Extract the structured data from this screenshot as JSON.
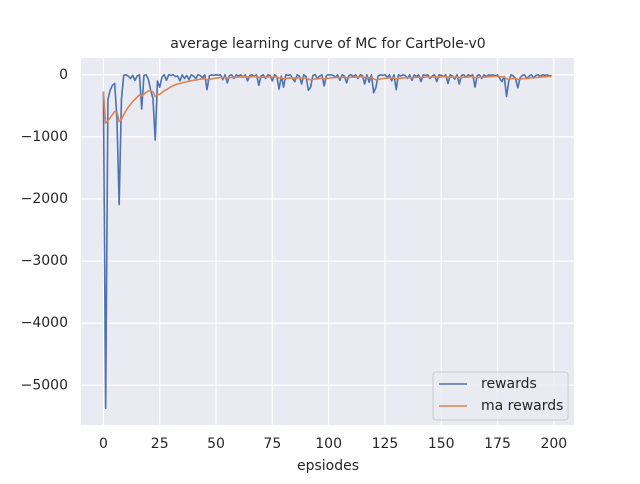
{
  "chart_data": {
    "type": "line",
    "title": "average learning curve of MC for CartPole-v0",
    "x_label": "epsiodes",
    "x": [
      0,
      1,
      2,
      3,
      4,
      5,
      6,
      7,
      8,
      9,
      10,
      11,
      12,
      13,
      14,
      15,
      16,
      17,
      18,
      19,
      20,
      21,
      22,
      23,
      24,
      25,
      26,
      27,
      28,
      29,
      30,
      31,
      32,
      33,
      34,
      35,
      36,
      37,
      38,
      39,
      40,
      41,
      42,
      43,
      44,
      45,
      46,
      47,
      48,
      49,
      50,
      51,
      52,
      53,
      54,
      55,
      56,
      57,
      58,
      59,
      60,
      61,
      62,
      63,
      64,
      65,
      66,
      67,
      68,
      69,
      70,
      71,
      72,
      73,
      74,
      75,
      76,
      77,
      78,
      79,
      80,
      81,
      82,
      83,
      84,
      85,
      86,
      87,
      88,
      89,
      90,
      91,
      92,
      93,
      94,
      95,
      96,
      97,
      98,
      99,
      100,
      101,
      102,
      103,
      104,
      105,
      106,
      107,
      108,
      109,
      110,
      111,
      112,
      113,
      114,
      115,
      116,
      117,
      118,
      119,
      120,
      121,
      122,
      123,
      124,
      125,
      126,
      127,
      128,
      129,
      130,
      131,
      132,
      133,
      134,
      135,
      136,
      137,
      138,
      139,
      140,
      141,
      142,
      143,
      144,
      145,
      146,
      147,
      148,
      149,
      150,
      151,
      152,
      153,
      154,
      155,
      156,
      157,
      158,
      159,
      160,
      161,
      162,
      163,
      164,
      165,
      166,
      167,
      168,
      169,
      170,
      171,
      172,
      173,
      174,
      175,
      176,
      177,
      178,
      179,
      180,
      181,
      182,
      183,
      184,
      185,
      186,
      187,
      188,
      189,
      190,
      191,
      192,
      193,
      194,
      195,
      196,
      197,
      198,
      199
    ],
    "series": [
      {
        "name": "rewards",
        "color": "#4c72b0",
        "values": [
          -270,
          -5370,
          -400,
          -250,
          -170,
          -140,
          -700,
          -2090,
          -400,
          -10,
          0,
          -20,
          -60,
          -10,
          -90,
          -20,
          0,
          -550,
          -10,
          0,
          -80,
          -250,
          -380,
          -1050,
          -100,
          -200,
          -40,
          0,
          -90,
          0,
          -10,
          0,
          -30,
          -20,
          -100,
          0,
          -60,
          -10,
          -80,
          0,
          -20,
          -60,
          0,
          -10,
          -50,
          0,
          -240,
          -20,
          0,
          -10,
          0,
          -5,
          0,
          -80,
          0,
          -130,
          -10,
          0,
          -60,
          0,
          -20,
          0,
          -40,
          0,
          -100,
          -10,
          0,
          -30,
          0,
          -170,
          -20,
          0,
          -60,
          0,
          -10,
          -100,
          0,
          -30,
          -230,
          -20,
          -200,
          0,
          -10,
          0,
          -60,
          -110,
          0,
          -20,
          -150,
          0,
          -30,
          -250,
          -200,
          -10,
          0,
          -60,
          -20,
          0,
          -180,
          -10,
          0,
          0,
          -10,
          -40,
          0,
          -90,
          0,
          -20,
          -130,
          -10,
          0,
          -30,
          0,
          -60,
          0,
          -10,
          -150,
          0,
          -120,
          0,
          -290,
          -200,
          -20,
          0,
          -10,
          0,
          -40,
          0,
          -100,
          0,
          -240,
          0,
          -20,
          0,
          -10,
          -60,
          0,
          -90,
          0,
          -30,
          0,
          -110,
          0,
          -10,
          0,
          -60,
          -20,
          0,
          -110,
          0,
          -10,
          -30,
          0,
          -140,
          0,
          -20,
          -70,
          0,
          -150,
          -10,
          0,
          -40,
          0,
          -20,
          0,
          -200,
          -10,
          0,
          -60,
          0,
          -30,
          0,
          -10,
          0,
          -20,
          0,
          -60,
          -110,
          -30,
          -350,
          -100,
          0,
          -20,
          -60,
          -210,
          -50,
          -10,
          0,
          -60,
          -20,
          0,
          -50,
          -10,
          0,
          -30,
          0,
          -10,
          0,
          -20,
          -10
        ]
      },
      {
        "name": "ma rewards",
        "color": "#dd8452",
        "values": [
          -270,
          -780,
          -742,
          -693,
          -641,
          -591,
          -602,
          -751,
          -716,
          -645,
          -581,
          -524,
          -478,
          -431,
          -397,
          -359,
          -323,
          -346,
          -312,
          -281,
          -261,
          -260,
          -272,
          -350,
          -325,
          -313,
          -286,
          -257,
          -240,
          -216,
          -195,
          -176,
          -161,
          -147,
          -142,
          -128,
          -121,
          -110,
          -107,
          -96,
          -88,
          -85,
          -77,
          -70,
          -68,
          -61,
          -79,
          -73,
          -66,
          -60,
          -54,
          -49,
          -44,
          -48,
          -43,
          -52,
          -48,
          -43,
          -45,
          -40,
          -38,
          -34,
          -35,
          -31,
          -38,
          -35,
          -32,
          -32,
          -29,
          -43,
          -41,
          -37,
          -39,
          -35,
          -33,
          -40,
          -36,
          -35,
          -55,
          -52,
          -67,
          -60,
          -55,
          -50,
          -51,
          -57,
          -51,
          -48,
          -58,
          -52,
          -50,
          -70,
          -83,
          -76,
          -68,
          -67,
          -62,
          -56,
          -68,
          -62,
          -56,
          -50,
          -46,
          -45,
          -41,
          -46,
          -41,
          -39,
          -48,
          -44,
          -40,
          -39,
          -35,
          -38,
          -34,
          -32,
          -44,
          -40,
          -48,
          -43,
          -68,
          -81,
          -75,
          -68,
          -62,
          -56,
          -54,
          -49,
          -54,
          -49,
          -68,
          -61,
          -57,
          -51,
          -47,
          -48,
          -43,
          -48,
          -43,
          -42,
          -38,
          -45,
          -41,
          -38,
          -34,
          -37,
          -35,
          -32,
          -40,
          -36,
          -33,
          -33,
          -30,
          -41,
          -37,
          -35,
          -39,
          -35,
          -47,
          -43,
          -39,
          -39,
          -35,
          -34,
          -31,
          -48,
          -44,
          -40,
          -42,
          -38,
          -37,
          -33,
          -31,
          -28,
          -27,
          -24,
          -28,
          -36,
          -35,
          -67,
          -70,
          -63,
          -59,
          -59,
          -74,
          -72,
          -66,
          -59,
          -59,
          -55,
          -50,
          -50,
          -46,
          -41,
          -40,
          -36,
          -33,
          -30,
          -29,
          -27
        ]
      }
    ],
    "xlim": [
      -9.95,
      208.95
    ],
    "xticks": [
      0,
      25,
      50,
      75,
      100,
      125,
      150,
      175,
      200
    ],
    "ylim": [
      -5640,
      270
    ],
    "yticks": [
      {
        "value": -5000,
        "label": "−5000"
      },
      {
        "value": -4000,
        "label": "−4000"
      },
      {
        "value": -3000,
        "label": "−3000"
      },
      {
        "value": -2000,
        "label": "−2000"
      },
      {
        "value": -1000,
        "label": "−1000"
      },
      0
    ],
    "grid": true,
    "legend": "lower right"
  }
}
